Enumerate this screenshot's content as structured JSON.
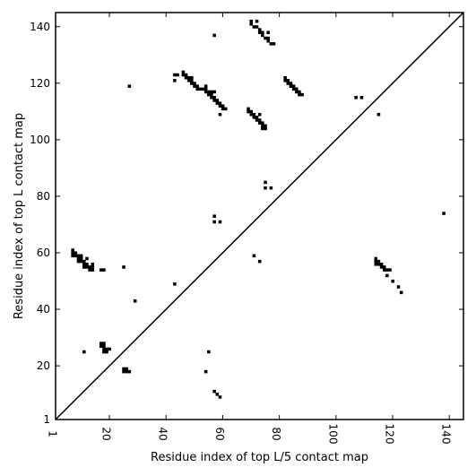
{
  "chart_data": {
    "type": "scatter",
    "title": "",
    "xlabel": "Residue index of top L/5 contact map",
    "ylabel": "Residue index of top L contact map",
    "xlim": [
      1,
      145
    ],
    "ylim": [
      1,
      145
    ],
    "xticks": [
      "1",
      "20",
      "40",
      "60",
      "80",
      "100",
      "120",
      "140"
    ],
    "xtick_values": [
      1,
      20,
      40,
      60,
      80,
      100,
      120,
      140
    ],
    "yticks": [
      "1",
      "20",
      "40",
      "60",
      "80",
      "100",
      "120",
      "140"
    ],
    "ytick_values": [
      1,
      20,
      40,
      60,
      80,
      100,
      120,
      140
    ],
    "diagonal": true,
    "marker": "square",
    "marker_color": "#000000",
    "upper_series": {
      "name": "",
      "points": [
        [
          70,
          142
        ],
        [
          70,
          141
        ],
        [
          71,
          140
        ],
        [
          72,
          140
        ],
        [
          72,
          142
        ],
        [
          73,
          139
        ],
        [
          73,
          138
        ],
        [
          74,
          138
        ],
        [
          74,
          137
        ],
        [
          75,
          136
        ],
        [
          76,
          136
        ],
        [
          76,
          135
        ],
        [
          77,
          134
        ],
        [
          78,
          134
        ],
        [
          76,
          138
        ],
        [
          57,
          137
        ],
        [
          27,
          119
        ],
        [
          43,
          123
        ],
        [
          44,
          123
        ],
        [
          43,
          121
        ],
        [
          46,
          124
        ],
        [
          46,
          123
        ],
        [
          47,
          123
        ],
        [
          47,
          122
        ],
        [
          48,
          122
        ],
        [
          49,
          122
        ],
        [
          48,
          121
        ],
        [
          49,
          121
        ],
        [
          49,
          120
        ],
        [
          50,
          120
        ],
        [
          50,
          119
        ],
        [
          51,
          119
        ],
        [
          51,
          118
        ],
        [
          52,
          118
        ],
        [
          53,
          118
        ],
        [
          54,
          118
        ],
        [
          54,
          119
        ],
        [
          54,
          117
        ],
        [
          55,
          117
        ],
        [
          55,
          116
        ],
        [
          56,
          116
        ],
        [
          56,
          117
        ],
        [
          57,
          117
        ],
        [
          56,
          115
        ],
        [
          57,
          115
        ],
        [
          57,
          114
        ],
        [
          58,
          114
        ],
        [
          58,
          113
        ],
        [
          59,
          113
        ],
        [
          59,
          112
        ],
        [
          60,
          112
        ],
        [
          60,
          111
        ],
        [
          61,
          111
        ],
        [
          59,
          109
        ],
        [
          69,
          111
        ],
        [
          69,
          110
        ],
        [
          70,
          110
        ],
        [
          70,
          109
        ],
        [
          71,
          109
        ],
        [
          71,
          108
        ],
        [
          72,
          108
        ],
        [
          72,
          107
        ],
        [
          73,
          107
        ],
        [
          73,
          106
        ],
        [
          74,
          106
        ],
        [
          74,
          105
        ],
        [
          75,
          105
        ],
        [
          75,
          104
        ],
        [
          74,
          104
        ],
        [
          73,
          109
        ],
        [
          82,
          122
        ],
        [
          82,
          121
        ],
        [
          83,
          121
        ],
        [
          83,
          120
        ],
        [
          84,
          120
        ],
        [
          84,
          119
        ],
        [
          85,
          119
        ],
        [
          85,
          118
        ],
        [
          86,
          118
        ],
        [
          86,
          117
        ],
        [
          87,
          117
        ],
        [
          87,
          116
        ],
        [
          88,
          116
        ],
        [
          107,
          115
        ],
        [
          109,
          115
        ],
        [
          115,
          109
        ],
        [
          75,
          85
        ],
        [
          75,
          83
        ],
        [
          77,
          83
        ],
        [
          138,
          74
        ],
        [
          57,
          73
        ],
        [
          57,
          71
        ],
        [
          59,
          71
        ]
      ]
    },
    "lower_series": {
      "name": "",
      "points": [
        [
          7,
          61
        ],
        [
          7,
          60
        ],
        [
          8,
          60
        ],
        [
          7,
          59
        ],
        [
          8,
          59
        ],
        [
          9,
          59
        ],
        [
          10,
          59
        ],
        [
          9,
          58
        ],
        [
          10,
          58
        ],
        [
          9,
          57
        ],
        [
          10,
          57
        ],
        [
          11,
          57
        ],
        [
          12,
          58
        ],
        [
          11,
          56
        ],
        [
          12,
          56
        ],
        [
          11,
          55
        ],
        [
          12,
          55
        ],
        [
          13,
          55
        ],
        [
          14,
          55
        ],
        [
          13,
          54
        ],
        [
          14,
          54
        ],
        [
          14,
          56
        ],
        [
          17,
          54
        ],
        [
          18,
          54
        ],
        [
          25,
          55
        ],
        [
          29,
          43
        ],
        [
          43,
          49
        ],
        [
          71,
          59
        ],
        [
          73,
          57
        ],
        [
          114,
          58
        ],
        [
          114,
          57
        ],
        [
          114,
          56
        ],
        [
          115,
          56
        ],
        [
          115,
          57
        ],
        [
          116,
          56
        ],
        [
          116,
          55
        ],
        [
          117,
          55
        ],
        [
          117,
          54
        ],
        [
          118,
          54
        ],
        [
          119,
          54
        ],
        [
          118,
          52
        ],
        [
          120,
          50
        ],
        [
          122,
          48
        ],
        [
          123,
          46
        ],
        [
          17,
          28
        ],
        [
          18,
          28
        ],
        [
          17,
          27
        ],
        [
          18,
          27
        ],
        [
          18,
          26
        ],
        [
          19,
          26
        ],
        [
          20,
          26
        ],
        [
          18,
          25
        ],
        [
          19,
          25
        ],
        [
          11,
          25
        ],
        [
          25,
          19
        ],
        [
          26,
          19
        ],
        [
          25,
          18
        ],
        [
          26,
          18
        ],
        [
          27,
          18
        ],
        [
          55,
          25
        ],
        [
          54,
          18
        ],
        [
          57,
          11
        ],
        [
          58,
          10
        ],
        [
          59,
          9
        ]
      ]
    }
  }
}
